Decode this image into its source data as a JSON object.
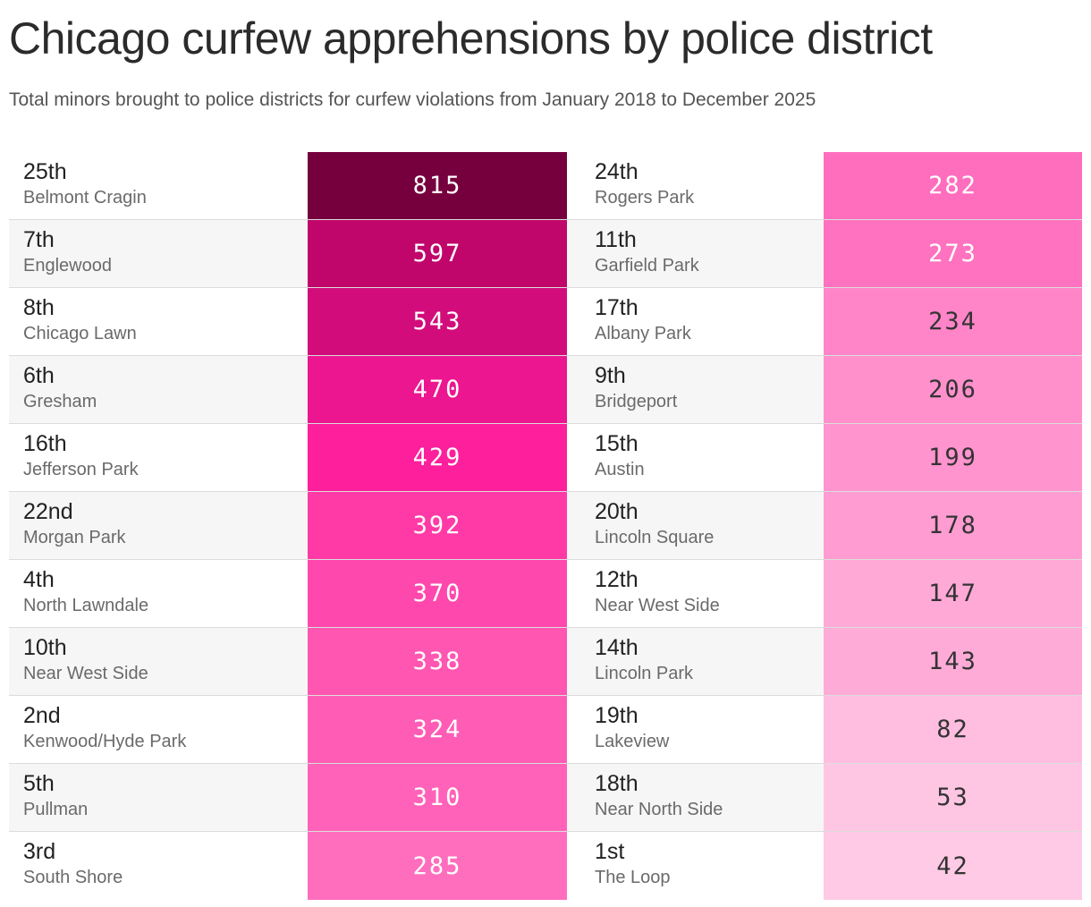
{
  "title": "Chicago curfew apprehensions by police district",
  "subtitle": "Total minors brought to police districts for curfew violations from January 2018 to December 2025",
  "chart_data": {
    "type": "table",
    "title": "Chicago curfew apprehensions by police district",
    "subtitle": "Total minors brought to police districts for curfew violations from January 2018 to December 2025",
    "rows": [
      {
        "district": "25th",
        "neighborhood": "Belmont Cragin",
        "value": 815,
        "color": "#76003d",
        "text_color": "#ffffff"
      },
      {
        "district": "7th",
        "neighborhood": "Englewood",
        "value": 597,
        "color": "#c1066b",
        "text_color": "#ffffff"
      },
      {
        "district": "8th",
        "neighborhood": "Chicago Lawn",
        "value": 543,
        "color": "#d20d7b",
        "text_color": "#ffffff"
      },
      {
        "district": "6th",
        "neighborhood": "Gresham",
        "value": 470,
        "color": "#ec1690",
        "text_color": "#ffffff"
      },
      {
        "district": "16th",
        "neighborhood": "Jefferson Park",
        "value": 429,
        "color": "#fd1f9c",
        "text_color": "#ffffff"
      },
      {
        "district": "22nd",
        "neighborhood": "Morgan Park",
        "value": 392,
        "color": "#ff3aa6",
        "text_color": "#ffffff"
      },
      {
        "district": "4th",
        "neighborhood": "North Lawndale",
        "value": 370,
        "color": "#ff48ad",
        "text_color": "#ffffff"
      },
      {
        "district": "10th",
        "neighborhood": "Near West Side",
        "value": 338,
        "color": "#ff56b2",
        "text_color": "#ffffff"
      },
      {
        "district": "2nd",
        "neighborhood": "Kenwood/Hyde Park",
        "value": 324,
        "color": "#ff5cb5",
        "text_color": "#ffffff"
      },
      {
        "district": "5th",
        "neighborhood": "Pullman",
        "value": 310,
        "color": "#ff62b8",
        "text_color": "#ffffff"
      },
      {
        "district": "3rd",
        "neighborhood": "South Shore",
        "value": 285,
        "color": "#ff6dbd",
        "text_color": "#ffffff"
      },
      {
        "district": "24th",
        "neighborhood": "Rogers Park",
        "value": 282,
        "color": "#ff6ebd",
        "text_color": "#ffffff"
      },
      {
        "district": "11th",
        "neighborhood": "Garfield Park",
        "value": 273,
        "color": "#ff72bf",
        "text_color": "#ffffff"
      },
      {
        "district": "17th",
        "neighborhood": "Albany Park",
        "value": 234,
        "color": "#ff85c8",
        "text_color": "#333333"
      },
      {
        "district": "9th",
        "neighborhood": "Bridgeport",
        "value": 206,
        "color": "#ff90cc",
        "text_color": "#333333"
      },
      {
        "district": "15th",
        "neighborhood": "Austin",
        "value": 199,
        "color": "#ff94ce",
        "text_color": "#333333"
      },
      {
        "district": "20th",
        "neighborhood": "Lincoln Square",
        "value": 178,
        "color": "#ff9dd2",
        "text_color": "#333333"
      },
      {
        "district": "12th",
        "neighborhood": "Near West Side",
        "value": 147,
        "color": "#ffa9d7",
        "text_color": "#333333"
      },
      {
        "district": "14th",
        "neighborhood": "Lincoln Park",
        "value": 143,
        "color": "#ffabd8",
        "text_color": "#333333"
      },
      {
        "district": "19th",
        "neighborhood": "Lakeview",
        "value": 82,
        "color": "#ffbde0",
        "text_color": "#333333"
      },
      {
        "district": "18th",
        "neighborhood": "Near North Side",
        "value": 53,
        "color": "#ffc6e4",
        "text_color": "#333333"
      },
      {
        "district": "1st",
        "neighborhood": "The Loop",
        "value": 42,
        "color": "#ffcae6",
        "text_color": "#333333"
      }
    ]
  }
}
